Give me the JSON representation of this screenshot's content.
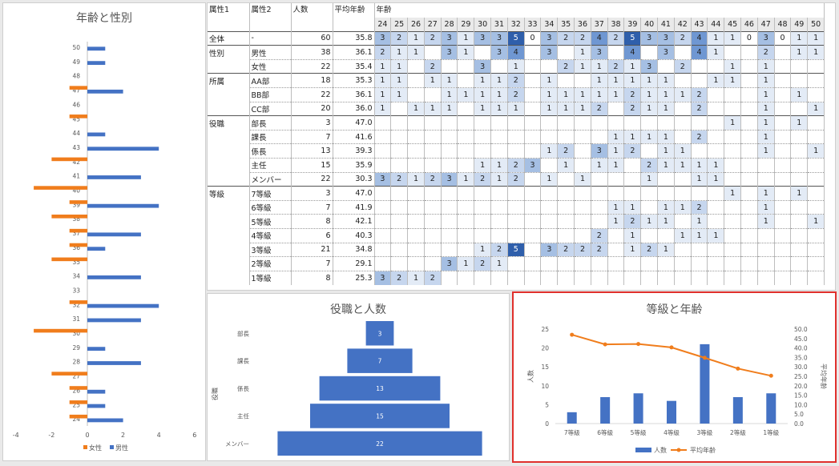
{
  "left_chart": {
    "title": "年齢と性別",
    "x_ticks": [
      "-4",
      "-2",
      "0",
      "2",
      "4",
      "6"
    ],
    "legend": [
      {
        "label": "女性",
        "color": "#f07d1c"
      },
      {
        "label": "男性",
        "color": "#4472c4"
      }
    ]
  },
  "pyramid_chart": {
    "title": "役職と人数",
    "ylabel": "役職"
  },
  "combo_chart": {
    "title": "等級と年齢",
    "ylabel_left": "人数",
    "ylabel_right": "平均年齢",
    "left_ticks": [
      "0",
      "5",
      "10",
      "15",
      "20",
      "25"
    ],
    "right_ticks": [
      "0.0",
      "5.0",
      "10.0",
      "15.0",
      "20.0",
      "25.0",
      "30.0",
      "35.0",
      "40.0",
      "45.0",
      "50.0"
    ],
    "legend": [
      {
        "label": "人数",
        "color": "#4472c4"
      },
      {
        "label": "平均年齢",
        "color": "#f07d1c"
      }
    ]
  },
  "chart_data": [
    {
      "type": "bar",
      "title": "年齢と性別",
      "orientation": "horizontal",
      "categories": [
        "24",
        "25",
        "26",
        "27",
        "28",
        "29",
        "30",
        "31",
        "32",
        "33",
        "34",
        "35",
        "36",
        "37",
        "38",
        "39",
        "40",
        "41",
        "42",
        "43",
        "44",
        "45",
        "46",
        "47",
        "48",
        "49",
        "50"
      ],
      "series": [
        {
          "name": "女性",
          "values": [
            -1,
            -1,
            -1,
            -2,
            0,
            0,
            -3,
            0,
            -1,
            0,
            0,
            -2,
            -1,
            -1,
            -2,
            -1,
            -3,
            0,
            -2,
            0,
            0,
            -1,
            0,
            -1,
            0,
            0,
            0
          ]
        },
        {
          "name": "男性",
          "values": [
            2,
            1,
            1,
            0,
            3,
            1,
            0,
            3,
            4,
            0,
            3,
            0,
            1,
            3,
            0,
            4,
            0,
            3,
            0,
            4,
            1,
            0,
            0,
            2,
            0,
            1,
            1
          ]
        }
      ],
      "xlim": [
        -4,
        6
      ]
    },
    {
      "type": "bar",
      "title": "役職と人数",
      "categories": [
        "部長",
        "課長",
        "係長",
        "主任",
        "メンバー"
      ],
      "values": [
        3,
        7,
        13,
        15,
        22
      ],
      "ylabel": "役職"
    },
    {
      "type": "bar",
      "title": "等級と年齢",
      "categories": [
        "7等級",
        "6等級",
        "5等級",
        "4等級",
        "3等級",
        "2等級",
        "1等級"
      ],
      "series": [
        {
          "name": "人数",
          "values": [
            3,
            7,
            8,
            6,
            21,
            7,
            8
          ]
        },
        {
          "name": "平均年齢",
          "values": [
            47.0,
            41.9,
            42.1,
            40.3,
            34.8,
            29.1,
            25.3
          ]
        }
      ],
      "ylabel": "人数",
      "ylim": [
        0,
        25
      ],
      "y2label": "平均年齢",
      "y2lim": [
        0,
        50
      ]
    }
  ],
  "table": {
    "headers": [
      "属性1",
      "属性2",
      "人数",
      "平均年齢",
      "年齢"
    ],
    "ages": [
      "24",
      "25",
      "26",
      "27",
      "28",
      "29",
      "30",
      "31",
      "32",
      "33",
      "34",
      "35",
      "36",
      "37",
      "38",
      "39",
      "40",
      "41",
      "42",
      "43",
      "44",
      "45",
      "46",
      "47",
      "48",
      "49",
      "50"
    ],
    "rows": [
      {
        "g1": "全体",
        "g2": "-",
        "n": "60",
        "avg": "35.8",
        "sep": "solid",
        "vals": [
          3,
          2,
          1,
          2,
          3,
          1,
          3,
          3,
          5,
          0,
          3,
          2,
          2,
          4,
          2,
          5,
          3,
          3,
          2,
          4,
          1,
          1,
          0,
          3,
          0,
          1,
          1
        ]
      },
      {
        "g1": "性別",
        "g2": "男性",
        "n": "38",
        "avg": "36.1",
        "sep": "solid",
        "vals": [
          2,
          1,
          1,
          null,
          3,
          1,
          null,
          3,
          4,
          null,
          3,
          null,
          1,
          3,
          null,
          4,
          null,
          3,
          null,
          4,
          1,
          null,
          null,
          2,
          null,
          1,
          1
        ]
      },
      {
        "g1": "",
        "g2": "女性",
        "n": "22",
        "avg": "35.4",
        "sep": "dot",
        "vals": [
          1,
          1,
          null,
          2,
          null,
          null,
          3,
          null,
          1,
          null,
          null,
          2,
          1,
          1,
          2,
          1,
          3,
          null,
          2,
          null,
          null,
          1,
          null,
          1,
          null,
          null,
          null
        ]
      },
      {
        "g1": "所属",
        "g2": "AA部",
        "n": "18",
        "avg": "35.3",
        "sep": "solid",
        "vals": [
          1,
          1,
          null,
          1,
          1,
          null,
          1,
          1,
          2,
          null,
          1,
          null,
          null,
          1,
          1,
          1,
          1,
          1,
          null,
          null,
          1,
          1,
          null,
          1,
          null,
          null,
          null
        ]
      },
      {
        "g1": "",
        "g2": "BB部",
        "n": "22",
        "avg": "36.1",
        "sep": "dot",
        "vals": [
          1,
          1,
          null,
          null,
          1,
          1,
          1,
          1,
          2,
          null,
          1,
          1,
          1,
          1,
          1,
          2,
          1,
          1,
          1,
          2,
          null,
          null,
          null,
          1,
          null,
          1,
          null
        ]
      },
      {
        "g1": "",
        "g2": "CC部",
        "n": "20",
        "avg": "36.0",
        "sep": "dot",
        "vals": [
          1,
          null,
          1,
          1,
          1,
          null,
          1,
          1,
          1,
          null,
          1,
          1,
          1,
          2,
          null,
          2,
          1,
          1,
          null,
          2,
          null,
          null,
          null,
          1,
          null,
          null,
          1
        ]
      },
      {
        "g1": "役職",
        "g2": "部長",
        "n": "3",
        "avg": "47.0",
        "sep": "solid",
        "vals": [
          null,
          null,
          null,
          null,
          null,
          null,
          null,
          null,
          null,
          null,
          null,
          null,
          null,
          null,
          null,
          null,
          null,
          null,
          null,
          null,
          null,
          1,
          null,
          1,
          null,
          1,
          null
        ]
      },
      {
        "g1": "",
        "g2": "課長",
        "n": "7",
        "avg": "41.6",
        "sep": "dot",
        "vals": [
          null,
          null,
          null,
          null,
          null,
          null,
          null,
          null,
          null,
          null,
          null,
          null,
          null,
          null,
          1,
          1,
          1,
          1,
          null,
          2,
          null,
          null,
          null,
          1,
          null,
          null,
          null
        ]
      },
      {
        "g1": "",
        "g2": "係長",
        "n": "13",
        "avg": "39.3",
        "sep": "dot",
        "vals": [
          null,
          null,
          null,
          null,
          null,
          null,
          null,
          null,
          null,
          null,
          1,
          2,
          null,
          3,
          1,
          2,
          null,
          1,
          1,
          null,
          null,
          null,
          null,
          1,
          null,
          null,
          1
        ]
      },
      {
        "g1": "",
        "g2": "主任",
        "n": "15",
        "avg": "35.9",
        "sep": "dot",
        "vals": [
          null,
          null,
          null,
          null,
          null,
          null,
          1,
          1,
          2,
          3,
          null,
          1,
          null,
          1,
          1,
          null,
          2,
          1,
          1,
          1,
          1,
          null,
          null,
          null,
          null,
          null,
          null
        ]
      },
      {
        "g1": "",
        "g2": "メンバー",
        "n": "22",
        "avg": "30.3",
        "sep": "dot",
        "vals": [
          3,
          2,
          1,
          2,
          3,
          1,
          2,
          1,
          2,
          null,
          1,
          null,
          1,
          null,
          null,
          null,
          1,
          null,
          null,
          1,
          1,
          null,
          null,
          null,
          null,
          null,
          null
        ]
      },
      {
        "g1": "等級",
        "g2": "7等級",
        "n": "3",
        "avg": "47.0",
        "sep": "solid",
        "vals": [
          null,
          null,
          null,
          null,
          null,
          null,
          null,
          null,
          null,
          null,
          null,
          null,
          null,
          null,
          null,
          null,
          null,
          null,
          null,
          null,
          null,
          1,
          null,
          1,
          null,
          1,
          null
        ]
      },
      {
        "g1": "",
        "g2": "6等級",
        "n": "7",
        "avg": "41.9",
        "sep": "dotg",
        "vals": [
          null,
          null,
          null,
          null,
          null,
          null,
          null,
          null,
          null,
          null,
          null,
          null,
          null,
          null,
          1,
          1,
          null,
          1,
          1,
          2,
          null,
          null,
          null,
          1,
          null,
          null,
          null
        ]
      },
      {
        "g1": "",
        "g2": "5等級",
        "n": "8",
        "avg": "42.1",
        "sep": "dotg",
        "vals": [
          null,
          null,
          null,
          null,
          null,
          null,
          null,
          null,
          null,
          null,
          null,
          null,
          null,
          null,
          1,
          2,
          1,
          1,
          null,
          1,
          null,
          null,
          null,
          1,
          null,
          null,
          1
        ]
      },
      {
        "g1": "",
        "g2": "4等級",
        "n": "6",
        "avg": "40.3",
        "sep": "dotg",
        "vals": [
          null,
          null,
          null,
          null,
          null,
          null,
          null,
          null,
          null,
          null,
          null,
          null,
          null,
          2,
          null,
          1,
          null,
          null,
          1,
          1,
          1,
          null,
          null,
          null,
          null,
          null,
          null
        ]
      },
      {
        "g1": "",
        "g2": "3等級",
        "n": "21",
        "avg": "34.8",
        "sep": "dotg",
        "vals": [
          null,
          null,
          null,
          null,
          null,
          null,
          1,
          2,
          5,
          null,
          3,
          2,
          2,
          2,
          null,
          1,
          2,
          1,
          null,
          null,
          null,
          null,
          null,
          null,
          null,
          null,
          null
        ]
      },
      {
        "g1": "",
        "g2": "2等級",
        "n": "7",
        "avg": "29.1",
        "sep": "dotg",
        "vals": [
          null,
          null,
          null,
          null,
          3,
          1,
          2,
          1,
          null,
          null,
          null,
          null,
          null,
          null,
          null,
          null,
          null,
          null,
          null,
          null,
          null,
          null,
          null,
          null,
          null,
          null,
          null
        ]
      },
      {
        "g1": "",
        "g2": "1等級",
        "n": "8",
        "avg": "25.3",
        "sep": "dotg",
        "vals": [
          3,
          2,
          1,
          2,
          null,
          null,
          null,
          null,
          null,
          null,
          null,
          null,
          null,
          null,
          null,
          null,
          null,
          null,
          null,
          null,
          null,
          null,
          null,
          null,
          null,
          null,
          null
        ]
      }
    ]
  }
}
